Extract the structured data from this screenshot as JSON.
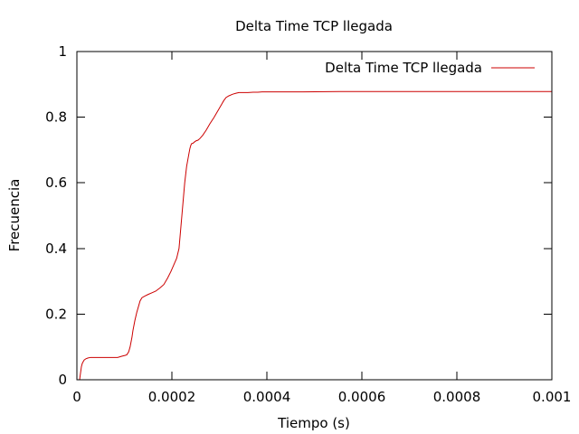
{
  "chart_data": {
    "type": "line",
    "title": "Delta Time TCP llegada",
    "xlabel": "Tiempo (s)",
    "ylabel": "Frecuencia",
    "xlim": [
      0,
      0.001
    ],
    "ylim": [
      0,
      1
    ],
    "grid": false,
    "legend_position": "top-right",
    "x_ticks": [
      {
        "value": 0,
        "label": "0"
      },
      {
        "value": 0.0002,
        "label": "0.0002"
      },
      {
        "value": 0.0004,
        "label": "0.0004"
      },
      {
        "value": 0.0006,
        "label": "0.0006"
      },
      {
        "value": 0.0008,
        "label": "0.0008"
      },
      {
        "value": 0.001,
        "label": "0.001"
      }
    ],
    "y_ticks": [
      {
        "value": 0,
        "label": "0"
      },
      {
        "value": 0.2,
        "label": "0.2"
      },
      {
        "value": 0.4,
        "label": "0.4"
      },
      {
        "value": 0.6,
        "label": "0.6"
      },
      {
        "value": 0.8,
        "label": "0.8"
      },
      {
        "value": 1,
        "label": "1"
      }
    ],
    "series": [
      {
        "name": "Delta Time TCP llegada",
        "color": "#cc0000",
        "x": [
          5.7e-06,
          7.6e-06,
          9.5e-06,
          1.14e-05,
          1.33e-05,
          1.52e-05,
          1.9e-05,
          2.29e-05,
          2.86e-05,
          3.81e-05,
          5.71e-05,
          7.62e-05,
          8.57e-05,
          9.52e-05,
          0.000101,
          0.000105,
          0.000109,
          0.000112,
          0.000114,
          0.000116,
          0.000118,
          0.000122,
          0.000126,
          0.00013,
          0.000133,
          0.000137,
          0.000143,
          0.00015,
          0.000158,
          0.000166,
          0.000175,
          0.000183,
          0.000191,
          0.000198,
          0.000204,
          0.00021,
          0.000215,
          0.000221,
          0.000227,
          0.000231,
          0.000236,
          0.000238,
          0.00024,
          0.000242,
          0.000244,
          0.000248,
          0.000251,
          0.000255,
          0.000259,
          0.000265,
          0.000272,
          0.00028,
          0.000289,
          0.000297,
          0.000305,
          0.000309,
          0.000314,
          0.00032,
          0.000328,
          0.000335,
          0.000341,
          0.000345,
          0.000354,
          0.00036,
          0.000371,
          0.000381,
          0.00039,
          0.000476,
          0.000552,
          0.000571,
          0.000762,
          0.001
        ],
        "y": [
          0,
          0.02,
          0.04,
          0.05,
          0.055,
          0.06,
          0.064,
          0.066,
          0.068,
          0.068,
          0.068,
          0.068,
          0.068,
          0.072,
          0.074,
          0.076,
          0.085,
          0.1,
          0.115,
          0.13,
          0.15,
          0.18,
          0.205,
          0.225,
          0.24,
          0.25,
          0.255,
          0.26,
          0.265,
          0.27,
          0.28,
          0.29,
          0.31,
          0.33,
          0.35,
          0.37,
          0.4,
          0.5,
          0.6,
          0.65,
          0.69,
          0.705,
          0.715,
          0.72,
          0.72,
          0.725,
          0.728,
          0.73,
          0.735,
          0.745,
          0.76,
          0.78,
          0.8,
          0.82,
          0.84,
          0.85,
          0.86,
          0.865,
          0.87,
          0.873,
          0.875,
          0.875,
          0.875,
          0.875,
          0.876,
          0.876,
          0.877,
          0.877,
          0.878,
          0.878,
          0.878,
          0.878
        ]
      }
    ]
  }
}
